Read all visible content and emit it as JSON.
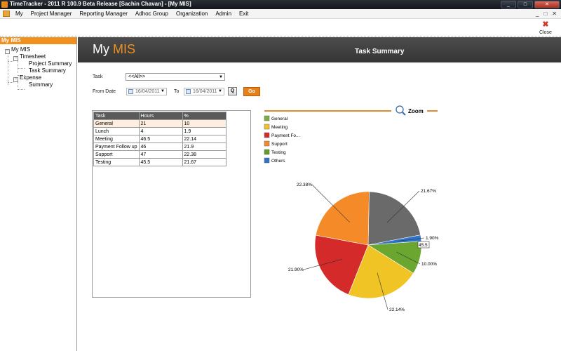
{
  "window": {
    "title": "TimeTracker - 2011 R 100.9 Beta Release  [Sachin Chavan] - [My MIS]",
    "controls": [
      "_",
      "□",
      "✕"
    ]
  },
  "menu": {
    "items": [
      "My",
      "Project Manager",
      "Reporting Manager",
      "Adhoc Group",
      "Organization",
      "Admin",
      "Exit"
    ],
    "mdi_controls": [
      "_",
      "□",
      "✕"
    ]
  },
  "toolbar": {
    "close_label": "Close"
  },
  "sidebar": {
    "header": "My MIS",
    "tree": {
      "root": "My MIS",
      "timesheet": "Timesheet",
      "project_summary": "Project Summary",
      "task_summary": "Task Summary",
      "expense": "Expense",
      "summary": "Summary"
    }
  },
  "banner": {
    "title_a": "My",
    "title_b": "MIS",
    "subtitle": "Task Summary"
  },
  "filters": {
    "task_label": "Task",
    "task_value": "<<All>>",
    "from_label": "From Date",
    "from_value": "16/04/2011",
    "to_label": "To",
    "to_value": "16/04/2011",
    "q_label": "Q",
    "go_label": "Go"
  },
  "grid": {
    "headers": [
      "Task",
      "Hours",
      "%"
    ],
    "rows": [
      [
        "General",
        "21",
        "10"
      ],
      [
        "Lunch",
        "4",
        "1.9"
      ],
      [
        "Meeting",
        "46.5",
        "22.14"
      ],
      [
        "Payment Follow up",
        "46",
        "21.9"
      ],
      [
        "Support",
        "47",
        "22.38"
      ],
      [
        "Testing",
        "45.5",
        "21.67"
      ]
    ]
  },
  "chart_data": {
    "type": "pie",
    "zoom_label": "Zoom",
    "legend": [
      "General",
      "Meeting",
      "Payment Fo...",
      "Support",
      "Testing",
      "Others"
    ],
    "colors": [
      "#7cae3e",
      "#f0c425",
      "#d42a2a",
      "#f58a28",
      "#5e9e22",
      "#2f74c9",
      "#6a6a6a"
    ],
    "slices": [
      {
        "label": "21.67%",
        "value": 21.67,
        "color": "#6a6a6a"
      },
      {
        "label": "1.90%",
        "value": 1.9,
        "color": "#2f74c9"
      },
      {
        "label": "10.00%",
        "value": 10.0,
        "color": "#6aa630"
      },
      {
        "label": "22.14%",
        "value": 22.14,
        "color": "#f0c425"
      },
      {
        "label": "21.90%",
        "value": 21.9,
        "color": "#d42a2a"
      },
      {
        "label": "22.38%",
        "value": 22.38,
        "color": "#f58a28"
      }
    ],
    "tooltip": "45.5"
  }
}
